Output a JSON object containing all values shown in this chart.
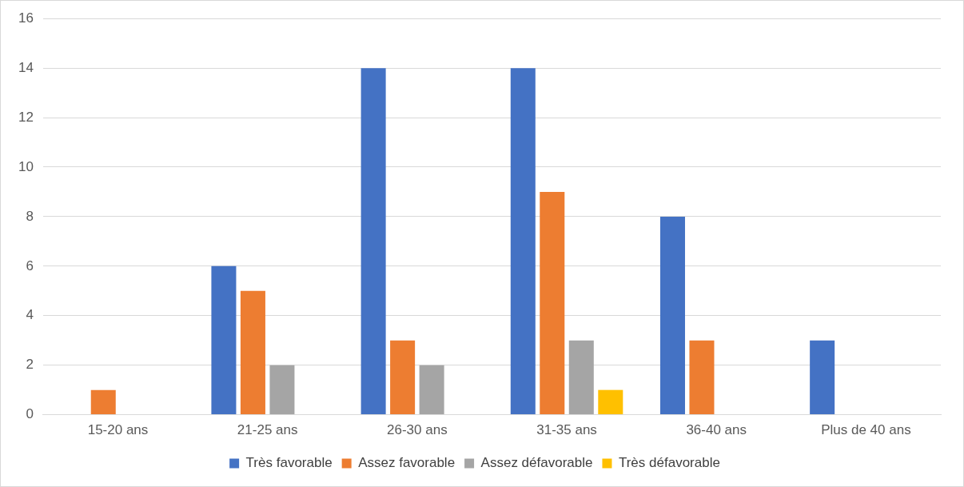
{
  "chart_data": {
    "type": "bar",
    "categories": [
      "15-20 ans",
      "21-25 ans",
      "26-30 ans",
      "31-35 ans",
      "36-40 ans",
      "Plus de 40 ans"
    ],
    "series": [
      {
        "name": "Très favorable",
        "color": "#4472c4",
        "values": [
          0,
          6,
          14,
          14,
          8,
          3
        ]
      },
      {
        "name": "Assez favorable",
        "color": "#ed7d31",
        "values": [
          1,
          5,
          3,
          9,
          3,
          0
        ]
      },
      {
        "name": "Assez défavorable",
        "color": "#a5a5a5",
        "values": [
          0,
          2,
          2,
          3,
          0,
          0
        ]
      },
      {
        "name": "Très défavorable",
        "color": "#ffc000",
        "values": [
          0,
          0,
          0,
          1,
          0,
          0
        ]
      }
    ],
    "ylim": [
      0,
      16
    ],
    "yticks": [
      0,
      2,
      4,
      6,
      8,
      10,
      12,
      14,
      16
    ],
    "grid": "y",
    "legend": "bottom"
  }
}
